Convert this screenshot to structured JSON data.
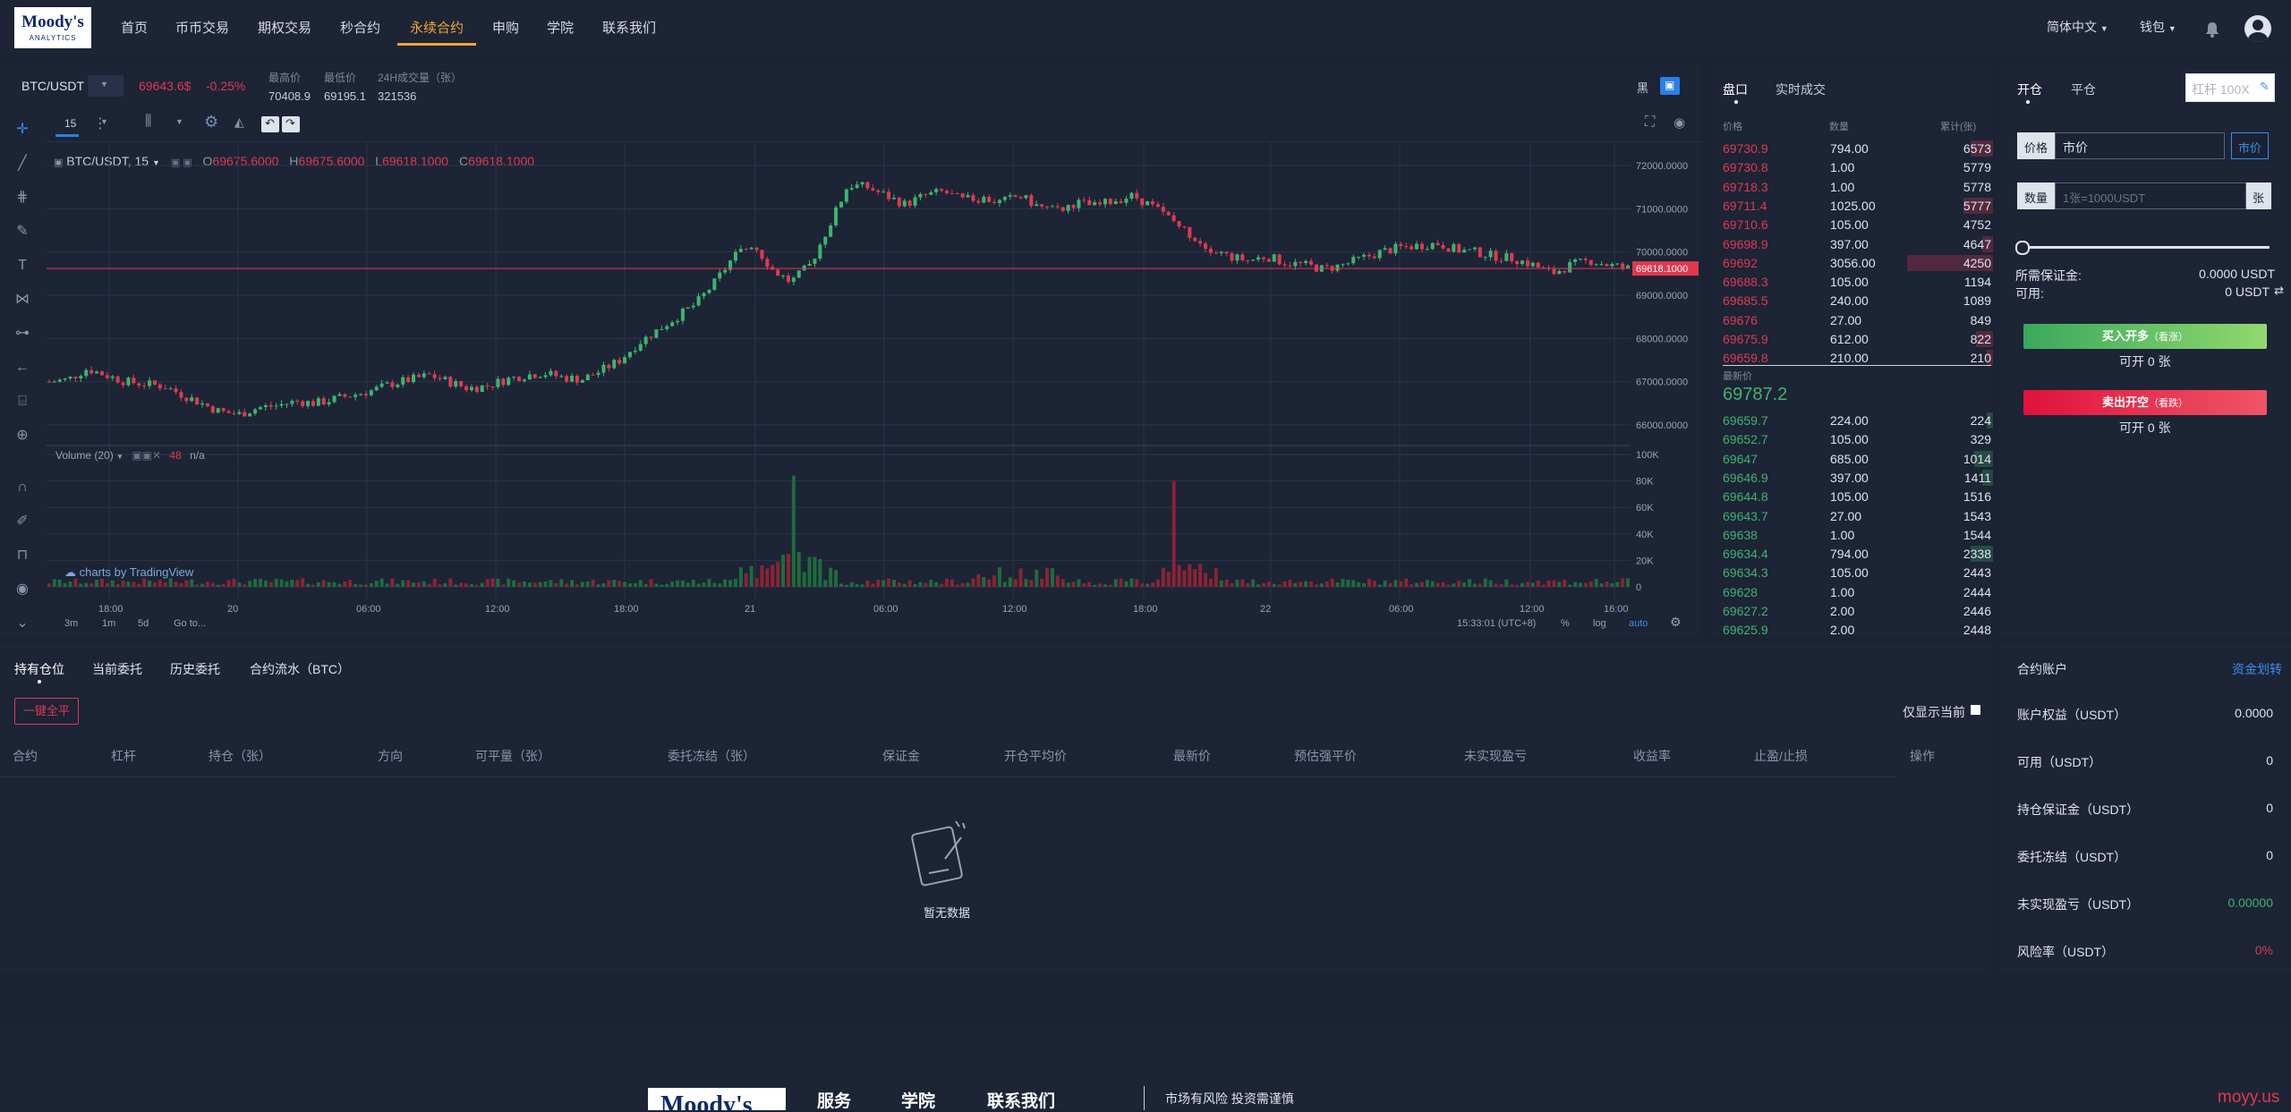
{
  "nav": {
    "logo_line1": "Moody's",
    "logo_line2": "ANALYTICS",
    "items": [
      "首页",
      "币币交易",
      "期权交易",
      "秒合约",
      "永续合约",
      "申购",
      "学院",
      "联系我们"
    ],
    "active_index": 4,
    "lang": "简体中文",
    "wallet": "钱包"
  },
  "ticker": {
    "pair": "BTC/USDT",
    "price": "69643.6$",
    "change": "-0.25%",
    "high_label": "最高价",
    "high": "70408.9",
    "low_label": "最低价",
    "low": "69195.1",
    "vol_label": "24H成交量（张）",
    "vol": "321536",
    "theme_label": "黑"
  },
  "chart": {
    "interval": "15",
    "legend_pair": "BTC/USDT, 15",
    "ohlc": {
      "o": "69675.6000",
      "h": "69675.6000",
      "l": "69618.1000",
      "c": "69618.1000"
    },
    "last_price_tag": "69618.1000",
    "volume_label": "Volume (20)",
    "volume_value": "48",
    "volume_na": "n/a",
    "watermark": "charts by TradingView",
    "time_ranges": [
      "3m",
      "1m",
      "5d",
      "Go to..."
    ],
    "clock": "15:33:01 (UTC+8)",
    "scale_opts": [
      "%",
      "log",
      "auto"
    ]
  },
  "chart_data": {
    "type": "candlestick",
    "price_axis": [
      "72000.0000",
      "71000.0000",
      "70000.0000",
      "69000.0000",
      "68000.0000",
      "67000.0000",
      "66000.0000"
    ],
    "volume_axis": [
      "100K",
      "80K",
      "60K",
      "40K",
      "20K",
      "0"
    ],
    "x_labels": [
      "18:00",
      "20",
      "06:00",
      "12:00",
      "18:00",
      "21",
      "06:00",
      "12:00",
      "18:00",
      "22",
      "06:00",
      "12:00",
      "16:00"
    ],
    "close_trend": [
      67000,
      67050,
      67300,
      67150,
      67000,
      66950,
      66900,
      66700,
      66500,
      66300,
      66250,
      66400,
      66450,
      66550,
      66500,
      66600,
      66700,
      66800,
      66950,
      67050,
      67150,
      67000,
      66850,
      66900,
      67050,
      67150,
      67200,
      67100,
      67050,
      67250,
      67500,
      67900,
      68200,
      68500,
      68800,
      69300,
      69900,
      70200,
      69600,
      69300,
      69700,
      70600,
      71550,
      71500,
      71300,
      71100,
      71300,
      71400,
      71200,
      71250,
      71150,
      71300,
      71050,
      70950,
      71150,
      71050,
      71200,
      71300,
      71050,
      70750,
      70400,
      70100,
      69900,
      69800,
      69900,
      69750,
      69700,
      69600,
      69700,
      69850,
      70000,
      70100,
      70150,
      70200,
      70050,
      70000,
      69900,
      69850,
      69700,
      69500,
      69700,
      69800,
      69700,
      69620
    ],
    "volume_spikes": [
      {
        "at": 0.47,
        "v": 84000
      },
      {
        "at": 0.71,
        "v": 80000
      }
    ]
  },
  "book": {
    "tab_depth": "盘口",
    "tab_trades": "实时成交",
    "col_price": "价格",
    "col_qty": "数量",
    "col_total": "累计(张)",
    "asks": [
      [
        "69730.9",
        "794.00",
        "6573",
        0.26
      ],
      [
        "69730.8",
        "1.00",
        "5779",
        0.0
      ],
      [
        "69718.3",
        "1.00",
        "5778",
        0.0
      ],
      [
        "69711.4",
        "1025.00",
        "5777",
        0.34
      ],
      [
        "69710.6",
        "105.00",
        "4752",
        0.0
      ],
      [
        "69698.9",
        "397.00",
        "4647",
        0.13
      ],
      [
        "69692",
        "3056.00",
        "4250",
        1.0
      ],
      [
        "69688.3",
        "105.00",
        "1194",
        0.0
      ],
      [
        "69685.5",
        "240.00",
        "1089",
        0.0
      ],
      [
        "69676",
        "27.00",
        "849",
        0.0
      ],
      [
        "69675.9",
        "612.00",
        "822",
        0.2
      ],
      [
        "69659.8",
        "210.00",
        "210",
        0.07
      ]
    ],
    "latest_label": "最新价",
    "latest": "69787.2",
    "bids": [
      [
        "69659.7",
        "224.00",
        "224",
        0.07
      ],
      [
        "69652.7",
        "105.00",
        "329",
        0.0
      ],
      [
        "69647",
        "685.00",
        "1014",
        0.22
      ],
      [
        "69646.9",
        "397.00",
        "1411",
        0.13
      ],
      [
        "69644.8",
        "105.00",
        "1516",
        0.0
      ],
      [
        "69643.7",
        "27.00",
        "1543",
        0.0
      ],
      [
        "69638",
        "1.00",
        "1544",
        0.0
      ],
      [
        "69634.4",
        "794.00",
        "2338",
        0.26
      ],
      [
        "69634.3",
        "105.00",
        "2443",
        0.0
      ],
      [
        "69628",
        "1.00",
        "2444",
        0.0
      ],
      [
        "69627.2",
        "2.00",
        "2446",
        0.0
      ],
      [
        "69625.9",
        "2.00",
        "2448",
        0.0
      ]
    ]
  },
  "form": {
    "tab_open": "开仓",
    "tab_close": "平仓",
    "leverage_placeholder": "杠杆 100X",
    "price_label": "价格",
    "price_value": "市价",
    "market_btn": "市价",
    "qty_label": "数量",
    "qty_placeholder": "1张=1000USDT",
    "qty_unit": "张",
    "margin_label": "所需保证金:",
    "margin_value": "0.0000 USDT",
    "avail_label": "可用:",
    "avail_value": "0 USDT",
    "buy_btn": "买入开多",
    "buy_note": "（看涨）",
    "buy_avail": "可开 0 张",
    "sell_btn": "卖出开空",
    "sell_note": "（看跌）",
    "sell_avail": "可开 0 张"
  },
  "positions": {
    "tabs": [
      "持有仓位",
      "当前委托",
      "历史委托",
      "合约流水（BTC）"
    ],
    "close_all": "一键全平",
    "only_current": "仅显示当前",
    "columns": [
      "合约",
      "杠杆",
      "持仓（张）",
      "方向",
      "可平量（张）",
      "委托冻结（张）",
      "保证金",
      "开仓平均价",
      "最新价",
      "预估强平价",
      "未实现盈亏",
      "收益率",
      "止盈/止损",
      "操作"
    ],
    "empty": "暂无数据"
  },
  "account": {
    "title": "合约账户",
    "transfer": "资金划转",
    "rows": [
      [
        "账户权益（USDT）",
        "0.0000"
      ],
      [
        "可用（USDT）",
        "0"
      ],
      [
        "持仓保证金（USDT）",
        "0"
      ],
      [
        "委托冻结（USDT）",
        "0"
      ],
      [
        "未实现盈亏（USDT）",
        "0.00000"
      ],
      [
        "风险率（USDT）",
        "0%"
      ]
    ]
  },
  "footer": {
    "logo_text": "Moody's",
    "links": [
      "服务",
      "学院",
      "联系我们"
    ],
    "risk": "市场有风险 投资需谨慎",
    "watermark": "moyy.us"
  },
  "colors": {
    "accent": "#f0a830",
    "up": "#3db46d",
    "down": "#e0394f",
    "link": "#3c8ce8"
  }
}
